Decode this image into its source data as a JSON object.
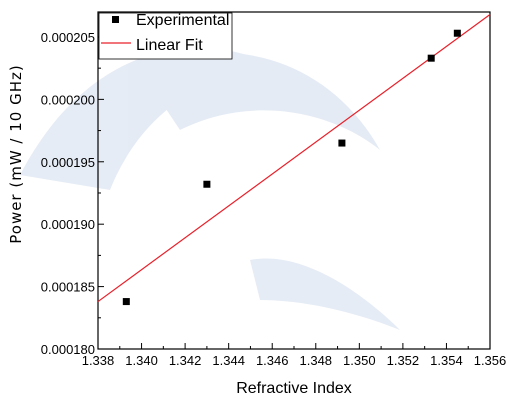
{
  "chart_data": {
    "type": "scatter",
    "xlabel": "Refractive Index",
    "ylabel": "Power (mW / 10 GHz)",
    "xlim": [
      1.338,
      1.356
    ],
    "ylim": [
      0.00018,
      0.000207
    ],
    "xticks": [
      "1.338",
      "1.340",
      "1.342",
      "1.344",
      "1.346",
      "1.348",
      "1.350",
      "1.352",
      "1.354",
      "1.356"
    ],
    "yticks": [
      "0.000180",
      "0.000185",
      "0.000190",
      "0.000195",
      "0.000200",
      "0.000205"
    ],
    "series": [
      {
        "name": "Experimental",
        "type": "scatter",
        "color": "#000000",
        "marker": "square",
        "x": [
          1.3393,
          1.343,
          1.3492,
          1.3533,
          1.3545
        ],
        "y": [
          0.0001838,
          0.0001932,
          0.0001965,
          0.0002033,
          0.0002053
        ]
      },
      {
        "name": "Linear Fit",
        "type": "line",
        "color": "#e8202a",
        "x": [
          1.338,
          1.356
        ],
        "y": [
          0.0001838,
          0.0002068
        ]
      }
    ],
    "legend": "top-left",
    "grid": false
  }
}
